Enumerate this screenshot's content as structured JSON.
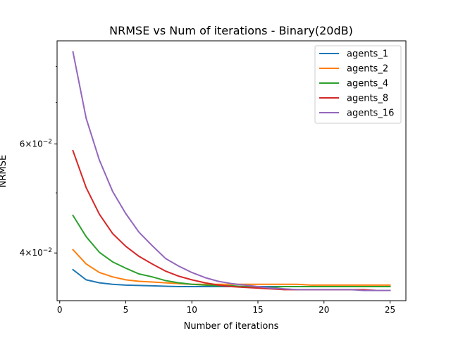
{
  "chart_data": {
    "type": "line",
    "title": "NRMSE vs Num of iterations - Binary(20dB)",
    "xlabel": "Number of iterations",
    "ylabel": "NRMSE",
    "yscale": "log",
    "xlim": [
      -0.2,
      26.2
    ],
    "ylim": [
      0.0335,
      0.088
    ],
    "xticks": [
      0,
      5,
      10,
      15,
      20,
      25
    ],
    "yticks": [
      {
        "value": 0.04,
        "base": "4",
        "exp": "−2"
      },
      {
        "value": 0.06,
        "base": "6",
        "exp": "−2"
      }
    ],
    "grid": false,
    "legend_position": "top-right",
    "x": [
      1,
      2,
      3,
      4,
      5,
      6,
      7,
      8,
      9,
      10,
      11,
      12,
      13,
      14,
      15,
      16,
      17,
      18,
      19,
      20,
      21,
      22,
      23,
      24,
      25
    ],
    "series": [
      {
        "name": "agents_1",
        "color": "#1f77b4",
        "values": [
          0.0376,
          0.0362,
          0.0358,
          0.0356,
          0.0355,
          0.03545,
          0.0354,
          0.03535,
          0.0353,
          0.0353,
          0.0353,
          0.0353,
          0.0353,
          0.0353,
          0.0353,
          0.0353,
          0.0353,
          0.0353,
          0.0353,
          0.0353,
          0.0353,
          0.0353,
          0.0353,
          0.0353,
          0.0353
        ]
      },
      {
        "name": "agents_2",
        "color": "#ff7f0e",
        "values": [
          0.0405,
          0.0384,
          0.0372,
          0.0366,
          0.0362,
          0.036,
          0.0359,
          0.0358,
          0.0357,
          0.0356,
          0.0356,
          0.0356,
          0.0356,
          0.0356,
          0.0356,
          0.0356,
          0.0356,
          0.0356,
          0.0355,
          0.0355,
          0.0355,
          0.0355,
          0.0355,
          0.0355,
          0.0355
        ]
      },
      {
        "name": "agents_4",
        "color": "#2ca02c",
        "values": [
          0.046,
          0.0425,
          0.0401,
          0.0387,
          0.0378,
          0.037,
          0.0366,
          0.0361,
          0.0358,
          0.0356,
          0.0355,
          0.0354,
          0.0354,
          0.0353,
          0.0352,
          0.0352,
          0.0353,
          0.0353,
          0.0353,
          0.0353,
          0.0353,
          0.0353,
          0.0353,
          0.0353,
          0.0353
        ]
      },
      {
        "name": "agents_8",
        "color": "#d62728",
        "values": [
          0.0585,
          0.051,
          0.0462,
          0.043,
          0.041,
          0.0395,
          0.0384,
          0.0374,
          0.0367,
          0.0362,
          0.0358,
          0.0355,
          0.0353,
          0.0352,
          0.0351,
          0.035,
          0.0349,
          0.0349,
          0.0349,
          0.0349,
          0.0349,
          0.0349,
          0.0349,
          0.0348,
          0.0348
        ]
      },
      {
        "name": "agents_16",
        "color": "#9467bd",
        "values": [
          0.0845,
          0.066,
          0.0565,
          0.0503,
          0.0463,
          0.0432,
          0.0411,
          0.0392,
          0.0381,
          0.0372,
          0.0365,
          0.036,
          0.0357,
          0.0355,
          0.0353,
          0.0351,
          0.035,
          0.0349,
          0.0349,
          0.0349,
          0.0349,
          0.0349,
          0.0348,
          0.0348,
          0.0348
        ]
      }
    ]
  }
}
